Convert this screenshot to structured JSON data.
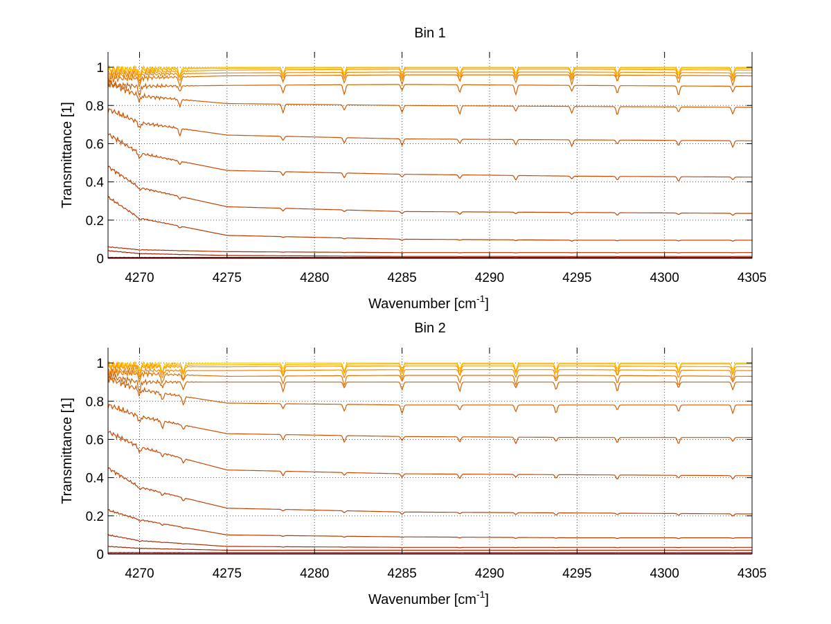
{
  "chart_data": [
    {
      "type": "line",
      "title": "Bin 1",
      "xlabel": "Wavenumber [cm",
      "xlabel_sup": "-1",
      "xlabel_end": "]",
      "ylabel": "Transmittance [1]",
      "xlim": [
        4268.2,
        4305
      ],
      "ylim": [
        0,
        1.08
      ],
      "x_ticks": [
        4270,
        4275,
        4280,
        4285,
        4290,
        4295,
        4300,
        4305
      ],
      "x_tick_labels": [
        "4270",
        "4275",
        "4280",
        "4285",
        "4290",
        "4295",
        "4300",
        "4305"
      ],
      "y_ticks": [
        0,
        0.2,
        0.4,
        0.6,
        0.8,
        1
      ],
      "y_tick_labels": [
        "0",
        "0.2",
        "0.4",
        "0.6",
        "0.8",
        "1"
      ],
      "grid": true,
      "absorption_lines": [
        4270,
        4272.3,
        4278.2,
        4281.7,
        4285.0,
        4288.3,
        4291.5,
        4294.7,
        4297.3,
        4300.8,
        4303.9
      ],
      "series": [
        {
          "color": "#ffcc00",
          "x": [
            4268.2,
            4275,
            4285,
            4295,
            4305
          ],
          "values": [
            0.99,
            1.0,
            1.0,
            1.0,
            1.0
          ]
        },
        {
          "color": "#ffb000",
          "x": [
            4268.2,
            4275,
            4285,
            4295,
            4305
          ],
          "values": [
            0.985,
            0.995,
            0.997,
            0.997,
            0.995
          ]
        },
        {
          "color": "#ff9800",
          "x": [
            4268.2,
            4275,
            4285,
            4295,
            4305
          ],
          "values": [
            0.97,
            0.985,
            0.99,
            0.99,
            0.985
          ]
        },
        {
          "color": "#f08a00",
          "x": [
            4268.2,
            4275,
            4285,
            4295,
            4305
          ],
          "values": [
            0.96,
            0.97,
            0.975,
            0.975,
            0.97
          ]
        },
        {
          "color": "#e07000",
          "x": [
            4268.2,
            4275,
            4285,
            4295,
            4305
          ],
          "values": [
            0.94,
            0.955,
            0.96,
            0.96,
            0.955
          ]
        },
        {
          "color": "#d06000",
          "x": [
            4268.2,
            4270,
            4275,
            4285,
            4295,
            4305
          ],
          "values": [
            0.91,
            0.9,
            0.905,
            0.91,
            0.905,
            0.9
          ]
        },
        {
          "color": "#d05a00",
          "x": [
            4268.2,
            4270,
            4275,
            4285,
            4295,
            4305
          ],
          "values": [
            0.92,
            0.85,
            0.81,
            0.8,
            0.795,
            0.79
          ]
        },
        {
          "color": "#cc5000",
          "x": [
            4268.2,
            4270,
            4275,
            4285,
            4295,
            4305
          ],
          "values": [
            0.78,
            0.71,
            0.645,
            0.625,
            0.62,
            0.615
          ]
        },
        {
          "color": "#c84800",
          "x": [
            4268.2,
            4270,
            4275,
            4285,
            4295,
            4305
          ],
          "values": [
            0.65,
            0.55,
            0.46,
            0.44,
            0.43,
            0.425
          ]
        },
        {
          "color": "#c04000",
          "x": [
            4268.2,
            4270,
            4275,
            4285,
            4295,
            4305
          ],
          "values": [
            0.48,
            0.37,
            0.27,
            0.245,
            0.24,
            0.235
          ]
        },
        {
          "color": "#b83800",
          "x": [
            4268.2,
            4270,
            4275,
            4285,
            4295,
            4305
          ],
          "values": [
            0.32,
            0.21,
            0.12,
            0.1,
            0.095,
            0.095
          ]
        },
        {
          "color": "#b02c00",
          "x": [
            4268.2,
            4270,
            4275,
            4285,
            4295,
            4305
          ],
          "values": [
            0.06,
            0.045,
            0.035,
            0.03,
            0.03,
            0.03
          ]
        },
        {
          "color": "#a82000",
          "x": [
            4268.2,
            4270,
            4275,
            4285,
            4295,
            4305
          ],
          "values": [
            0.04,
            0.025,
            0.015,
            0.01,
            0.01,
            0.01
          ]
        },
        {
          "color": "#cc0000",
          "x": [
            4268.2,
            4305
          ],
          "values": [
            0.005,
            0.005
          ]
        },
        {
          "color": "#990000",
          "x": [
            4268.2,
            4305
          ],
          "values": [
            0.002,
            0.002
          ]
        }
      ]
    },
    {
      "type": "line",
      "title": "Bin 2",
      "xlabel": "Wavenumber [cm",
      "xlabel_sup": "-1",
      "xlabel_end": "]",
      "ylabel": "Transmittance [1]",
      "xlim": [
        4268.2,
        4305
      ],
      "ylim": [
        0,
        1.08
      ],
      "x_ticks": [
        4270,
        4275,
        4280,
        4285,
        4290,
        4295,
        4300,
        4305
      ],
      "x_tick_labels": [
        "4270",
        "4275",
        "4280",
        "4285",
        "4290",
        "4295",
        "4300",
        "4305"
      ],
      "y_ticks": [
        0,
        0.2,
        0.4,
        0.6,
        0.8,
        1
      ],
      "y_tick_labels": [
        "0",
        "0.2",
        "0.4",
        "0.6",
        "0.8",
        "1"
      ],
      "grid": true,
      "absorption_lines": [
        4270,
        4271.3,
        4272.5,
        4278.2,
        4281.7,
        4285.0,
        4288.3,
        4291.5,
        4293.8,
        4297.3,
        4300.8,
        4303.9
      ],
      "series": [
        {
          "color": "#ffcc00",
          "x": [
            4268.2,
            4275,
            4285,
            4295,
            4305
          ],
          "values": [
            0.99,
            1.0,
            1.0,
            1.0,
            1.0
          ]
        },
        {
          "color": "#ffb000",
          "x": [
            4268.2,
            4275,
            4285,
            4295,
            4305
          ],
          "values": [
            0.985,
            0.99,
            0.995,
            0.995,
            0.995
          ]
        },
        {
          "color": "#ff9800",
          "x": [
            4268.2,
            4275,
            4285,
            4295,
            4305
          ],
          "values": [
            0.98,
            0.98,
            0.985,
            0.985,
            0.98
          ]
        },
        {
          "color": "#f08a00",
          "x": [
            4268.2,
            4275,
            4285,
            4295,
            4305
          ],
          "values": [
            0.96,
            0.96,
            0.965,
            0.965,
            0.96
          ]
        },
        {
          "color": "#e07000",
          "x": [
            4268.2,
            4275,
            4285,
            4295,
            4305
          ],
          "values": [
            0.95,
            0.93,
            0.935,
            0.935,
            0.93
          ]
        },
        {
          "color": "#d06000",
          "x": [
            4268.2,
            4270,
            4275,
            4285,
            4295,
            4305
          ],
          "values": [
            0.93,
            0.9,
            0.9,
            0.9,
            0.9,
            0.9
          ]
        },
        {
          "color": "#d05a00",
          "x": [
            4268.2,
            4270,
            4275,
            4285,
            4295,
            4305
          ],
          "values": [
            0.92,
            0.86,
            0.79,
            0.78,
            0.78,
            0.78
          ]
        },
        {
          "color": "#cc5000",
          "x": [
            4268.2,
            4270,
            4275,
            4285,
            4295,
            4305
          ],
          "values": [
            0.78,
            0.72,
            0.63,
            0.615,
            0.61,
            0.61
          ]
        },
        {
          "color": "#c84800",
          "x": [
            4268.2,
            4270,
            4275,
            4285,
            4295,
            4305
          ],
          "values": [
            0.64,
            0.56,
            0.44,
            0.42,
            0.415,
            0.41
          ]
        },
        {
          "color": "#c04000",
          "x": [
            4268.2,
            4270,
            4275,
            4285,
            4295,
            4305
          ],
          "values": [
            0.45,
            0.35,
            0.24,
            0.22,
            0.215,
            0.21
          ]
        },
        {
          "color": "#b83800",
          "x": [
            4268.2,
            4270,
            4275,
            4285,
            4295,
            4305
          ],
          "values": [
            0.23,
            0.18,
            0.1,
            0.09,
            0.085,
            0.085
          ]
        },
        {
          "color": "#b02c00",
          "x": [
            4268.2,
            4270,
            4275,
            4285,
            4295,
            4305
          ],
          "values": [
            0.1,
            0.07,
            0.04,
            0.035,
            0.035,
            0.035
          ]
        },
        {
          "color": "#a82000",
          "x": [
            4268.2,
            4270,
            4275,
            4285,
            4295,
            4305
          ],
          "values": [
            0.04,
            0.03,
            0.02,
            0.02,
            0.02,
            0.02
          ]
        },
        {
          "color": "#cc0000",
          "x": [
            4268.2,
            4305
          ],
          "values": [
            0.008,
            0.008
          ]
        },
        {
          "color": "#990000",
          "x": [
            4268.2,
            4305
          ],
          "values": [
            0.002,
            0.002
          ]
        }
      ]
    }
  ]
}
